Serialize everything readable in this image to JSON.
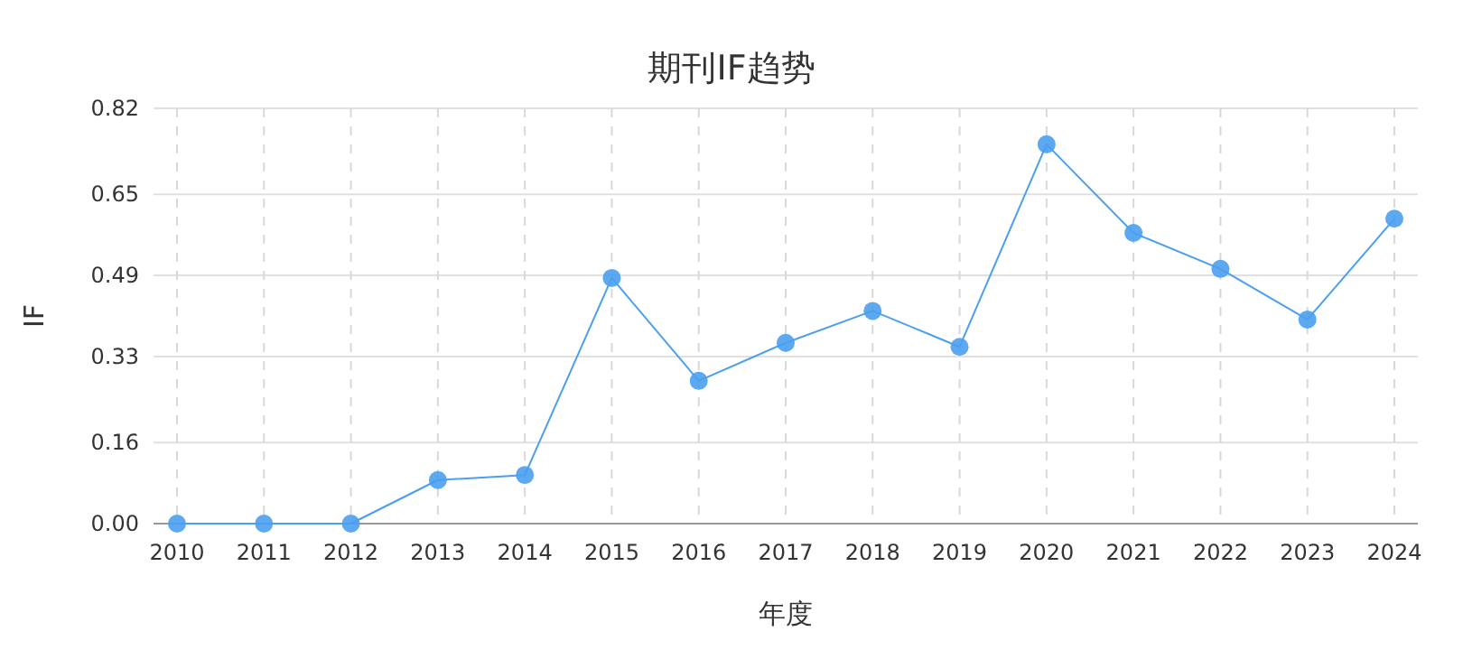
{
  "chart_data": {
    "type": "line",
    "title": "期刊IF趋势",
    "xlabel": "年度",
    "ylabel": "IF",
    "categories": [
      "2010",
      "2011",
      "2012",
      "2013",
      "2014",
      "2015",
      "2016",
      "2017",
      "2018",
      "2019",
      "2020",
      "2021",
      "2022",
      "2023",
      "2024"
    ],
    "series": [
      {
        "color": "#4a9ff0",
        "values": [
          0,
          0,
          0,
          0.086,
          0.096,
          0.485,
          0.282,
          0.357,
          0.42,
          0.349,
          0.749,
          0.574,
          0.503,
          0.403,
          0.602
        ]
      }
    ],
    "ylim": [
      0,
      0.82
    ],
    "yticks": [
      {
        "value": 0,
        "label": "0.00"
      },
      {
        "value": 0.16,
        "label": "0.16"
      },
      {
        "value": 0.33,
        "label": "0.33"
      },
      {
        "value": 0.49,
        "label": "0.49"
      },
      {
        "value": 0.65,
        "label": "0.65"
      },
      {
        "value": 0.82,
        "label": "0.82"
      }
    ],
    "grid": true,
    "marker": "circle",
    "line_style": "solid"
  }
}
